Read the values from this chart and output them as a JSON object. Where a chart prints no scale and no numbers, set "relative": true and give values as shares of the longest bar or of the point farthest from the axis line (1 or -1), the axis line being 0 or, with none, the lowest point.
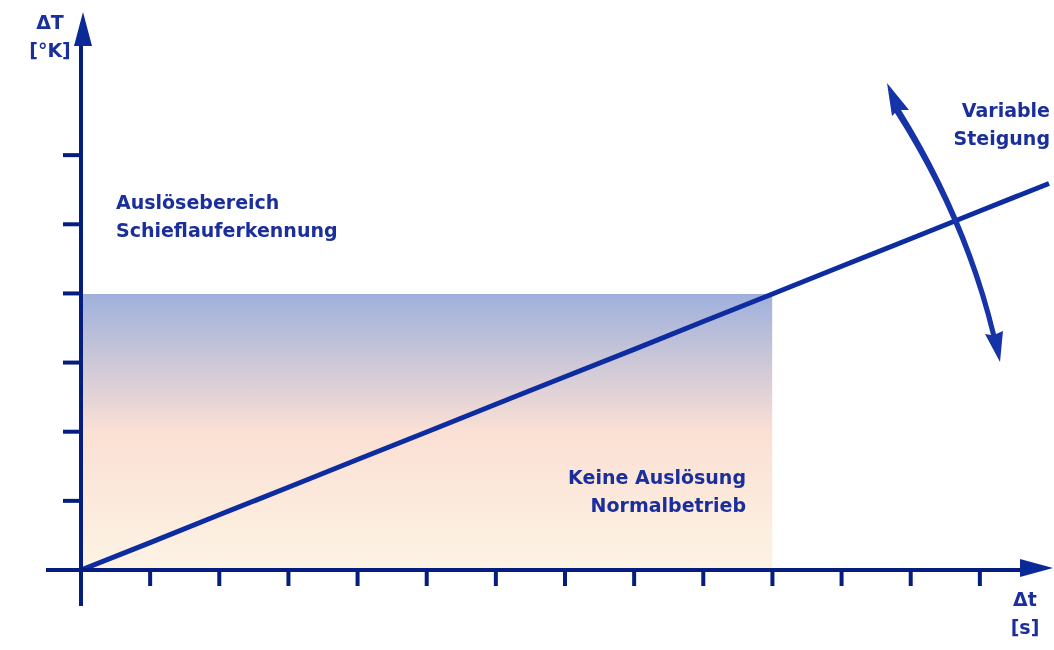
{
  "chart_data": {
    "type": "line",
    "relative": true,
    "xlabel": "Δt\n[s]",
    "categories": [
      null,
      null,
      null,
      null,
      null,
      null,
      null,
      null,
      null,
      null,
      null,
      null,
      null,
      null,
      null
    ],
    "series": [
      {
        "type": "area",
        "color": "#9fb0dc",
        "values": [
          0.714,
          0.714,
          0.714,
          0.714,
          0.714,
          0.714,
          0.714,
          0.714,
          0.714,
          0.714,
          0.714,
          null,
          null,
          null,
          null
        ]
      },
      {
        "type": "line",
        "color": "#0d2ca0",
        "values": [
          0,
          0.071,
          0.143,
          0.214,
          0.286,
          0.357,
          0.429,
          0.5,
          0.571,
          0.643,
          0.714,
          0.786,
          0.857,
          0.929,
          1
        ]
      }
    ],
    "annotations": [
      "Auslösebereich\nSchieflauferkennung",
      "Keine Auslösung\nNormalbetrieb",
      "Variable\nSteigung",
      "ΔT\n[°K]"
    ],
    "marker": "none",
    "legend": false,
    "grid": false
  }
}
